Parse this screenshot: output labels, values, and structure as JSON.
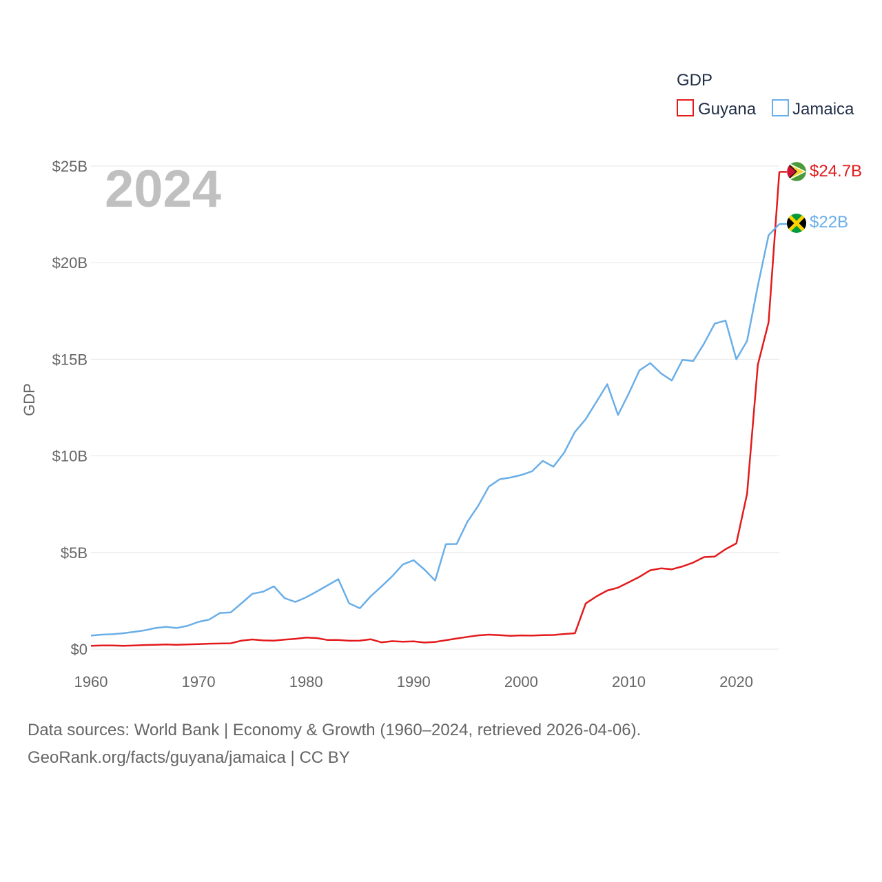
{
  "chart_data": {
    "type": "line",
    "title": "GDP",
    "year_label": "2024",
    "ylabel": "GDP",
    "xlabel": "",
    "xlim": [
      1960,
      2024
    ],
    "ylim": [
      0,
      25
    ],
    "y_ticks": [
      0,
      5,
      10,
      15,
      20,
      25
    ],
    "y_tick_labels": [
      "$0",
      "$5B",
      "$10B",
      "$15B",
      "$20B",
      "$25B"
    ],
    "x_ticks": [
      1960,
      1970,
      1980,
      1990,
      2000,
      2010,
      2020
    ],
    "x_tick_labels": [
      "1960",
      "1970",
      "1980",
      "1990",
      "2000",
      "2010",
      "2020"
    ],
    "units": "billions USD",
    "legend": {
      "title": "GDP",
      "position": "top-right"
    },
    "series": [
      {
        "name": "Guyana",
        "color": "#e31a1c",
        "end_label": "$24.7B",
        "flag_icon": "guyana-flag-icon",
        "points": [
          [
            1960,
            0.17
          ],
          [
            1961,
            0.19
          ],
          [
            1962,
            0.19
          ],
          [
            1963,
            0.17
          ],
          [
            1964,
            0.19
          ],
          [
            1965,
            0.21
          ],
          [
            1966,
            0.22
          ],
          [
            1967,
            0.24
          ],
          [
            1968,
            0.22
          ],
          [
            1969,
            0.24
          ],
          [
            1970,
            0.26
          ],
          [
            1971,
            0.28
          ],
          [
            1972,
            0.29
          ],
          [
            1973,
            0.3
          ],
          [
            1974,
            0.44
          ],
          [
            1975,
            0.5
          ],
          [
            1976,
            0.45
          ],
          [
            1977,
            0.44
          ],
          [
            1978,
            0.49
          ],
          [
            1979,
            0.53
          ],
          [
            1980,
            0.6
          ],
          [
            1981,
            0.57
          ],
          [
            1982,
            0.47
          ],
          [
            1983,
            0.47
          ],
          [
            1984,
            0.43
          ],
          [
            1985,
            0.44
          ],
          [
            1986,
            0.51
          ],
          [
            1987,
            0.35
          ],
          [
            1988,
            0.41
          ],
          [
            1989,
            0.38
          ],
          [
            1990,
            0.4
          ],
          [
            1991,
            0.34
          ],
          [
            1992,
            0.37
          ],
          [
            1993,
            0.46
          ],
          [
            1994,
            0.55
          ],
          [
            1995,
            0.63
          ],
          [
            1996,
            0.71
          ],
          [
            1997,
            0.75
          ],
          [
            1998,
            0.72
          ],
          [
            1999,
            0.69
          ],
          [
            2000,
            0.71
          ],
          [
            2001,
            0.7
          ],
          [
            2002,
            0.72
          ],
          [
            2003,
            0.73
          ],
          [
            2004,
            0.78
          ],
          [
            2005,
            0.82
          ],
          [
            2006,
            2.36
          ],
          [
            2007,
            2.73
          ],
          [
            2008,
            3.03
          ],
          [
            2009,
            3.18
          ],
          [
            2010,
            3.46
          ],
          [
            2011,
            3.74
          ],
          [
            2012,
            4.08
          ],
          [
            2013,
            4.18
          ],
          [
            2014,
            4.13
          ],
          [
            2015,
            4.28
          ],
          [
            2016,
            4.48
          ],
          [
            2017,
            4.76
          ],
          [
            2018,
            4.79
          ],
          [
            2019,
            5.17
          ],
          [
            2020,
            5.47
          ],
          [
            2021,
            8.04
          ],
          [
            2022,
            14.72
          ],
          [
            2023,
            16.91
          ],
          [
            2024,
            24.7
          ]
        ]
      },
      {
        "name": "Jamaica",
        "color": "#6aaee8",
        "end_label": "$22B",
        "flag_icon": "jamaica-flag-icon",
        "points": [
          [
            1960,
            0.7
          ],
          [
            1961,
            0.75
          ],
          [
            1962,
            0.77
          ],
          [
            1963,
            0.82
          ],
          [
            1964,
            0.89
          ],
          [
            1965,
            0.97
          ],
          [
            1966,
            1.09
          ],
          [
            1967,
            1.15
          ],
          [
            1968,
            1.09
          ],
          [
            1969,
            1.21
          ],
          [
            1970,
            1.41
          ],
          [
            1971,
            1.53
          ],
          [
            1972,
            1.87
          ],
          [
            1973,
            1.9
          ],
          [
            1974,
            2.37
          ],
          [
            1975,
            2.86
          ],
          [
            1976,
            2.97
          ],
          [
            1977,
            3.25
          ],
          [
            1978,
            2.64
          ],
          [
            1979,
            2.44
          ],
          [
            1980,
            2.68
          ],
          [
            1981,
            2.98
          ],
          [
            1982,
            3.3
          ],
          [
            1983,
            3.62
          ],
          [
            1984,
            2.37
          ],
          [
            1985,
            2.11
          ],
          [
            1986,
            2.73
          ],
          [
            1987,
            3.24
          ],
          [
            1988,
            3.77
          ],
          [
            1989,
            4.38
          ],
          [
            1990,
            4.6
          ],
          [
            1991,
            4.12
          ],
          [
            1992,
            3.55
          ],
          [
            1993,
            5.43
          ],
          [
            1994,
            5.44
          ],
          [
            1995,
            6.59
          ],
          [
            1996,
            7.41
          ],
          [
            1997,
            8.41
          ],
          [
            1998,
            8.79
          ],
          [
            1999,
            8.88
          ],
          [
            2000,
            9.01
          ],
          [
            2001,
            9.2
          ],
          [
            2002,
            9.74
          ],
          [
            2003,
            9.44
          ],
          [
            2004,
            10.17
          ],
          [
            2005,
            11.24
          ],
          [
            2006,
            11.9
          ],
          [
            2007,
            12.8
          ],
          [
            2008,
            13.71
          ],
          [
            2009,
            12.12
          ],
          [
            2010,
            13.23
          ],
          [
            2011,
            14.43
          ],
          [
            2012,
            14.8
          ],
          [
            2013,
            14.27
          ],
          [
            2014,
            13.9
          ],
          [
            2015,
            14.97
          ],
          [
            2016,
            14.91
          ],
          [
            2017,
            15.81
          ],
          [
            2018,
            16.85
          ],
          [
            2019,
            17.0
          ],
          [
            2020,
            15.0
          ],
          [
            2021,
            15.95
          ],
          [
            2022,
            18.8
          ],
          [
            2023,
            21.42
          ],
          [
            2024,
            22.0
          ]
        ]
      }
    ]
  },
  "footer": {
    "line1": "Data sources: World Bank | Economy & Growth (1960–2024, retrieved 2026-04-06).",
    "line2": "GeoRank.org/facts/guyana/jamaica | CC BY"
  }
}
